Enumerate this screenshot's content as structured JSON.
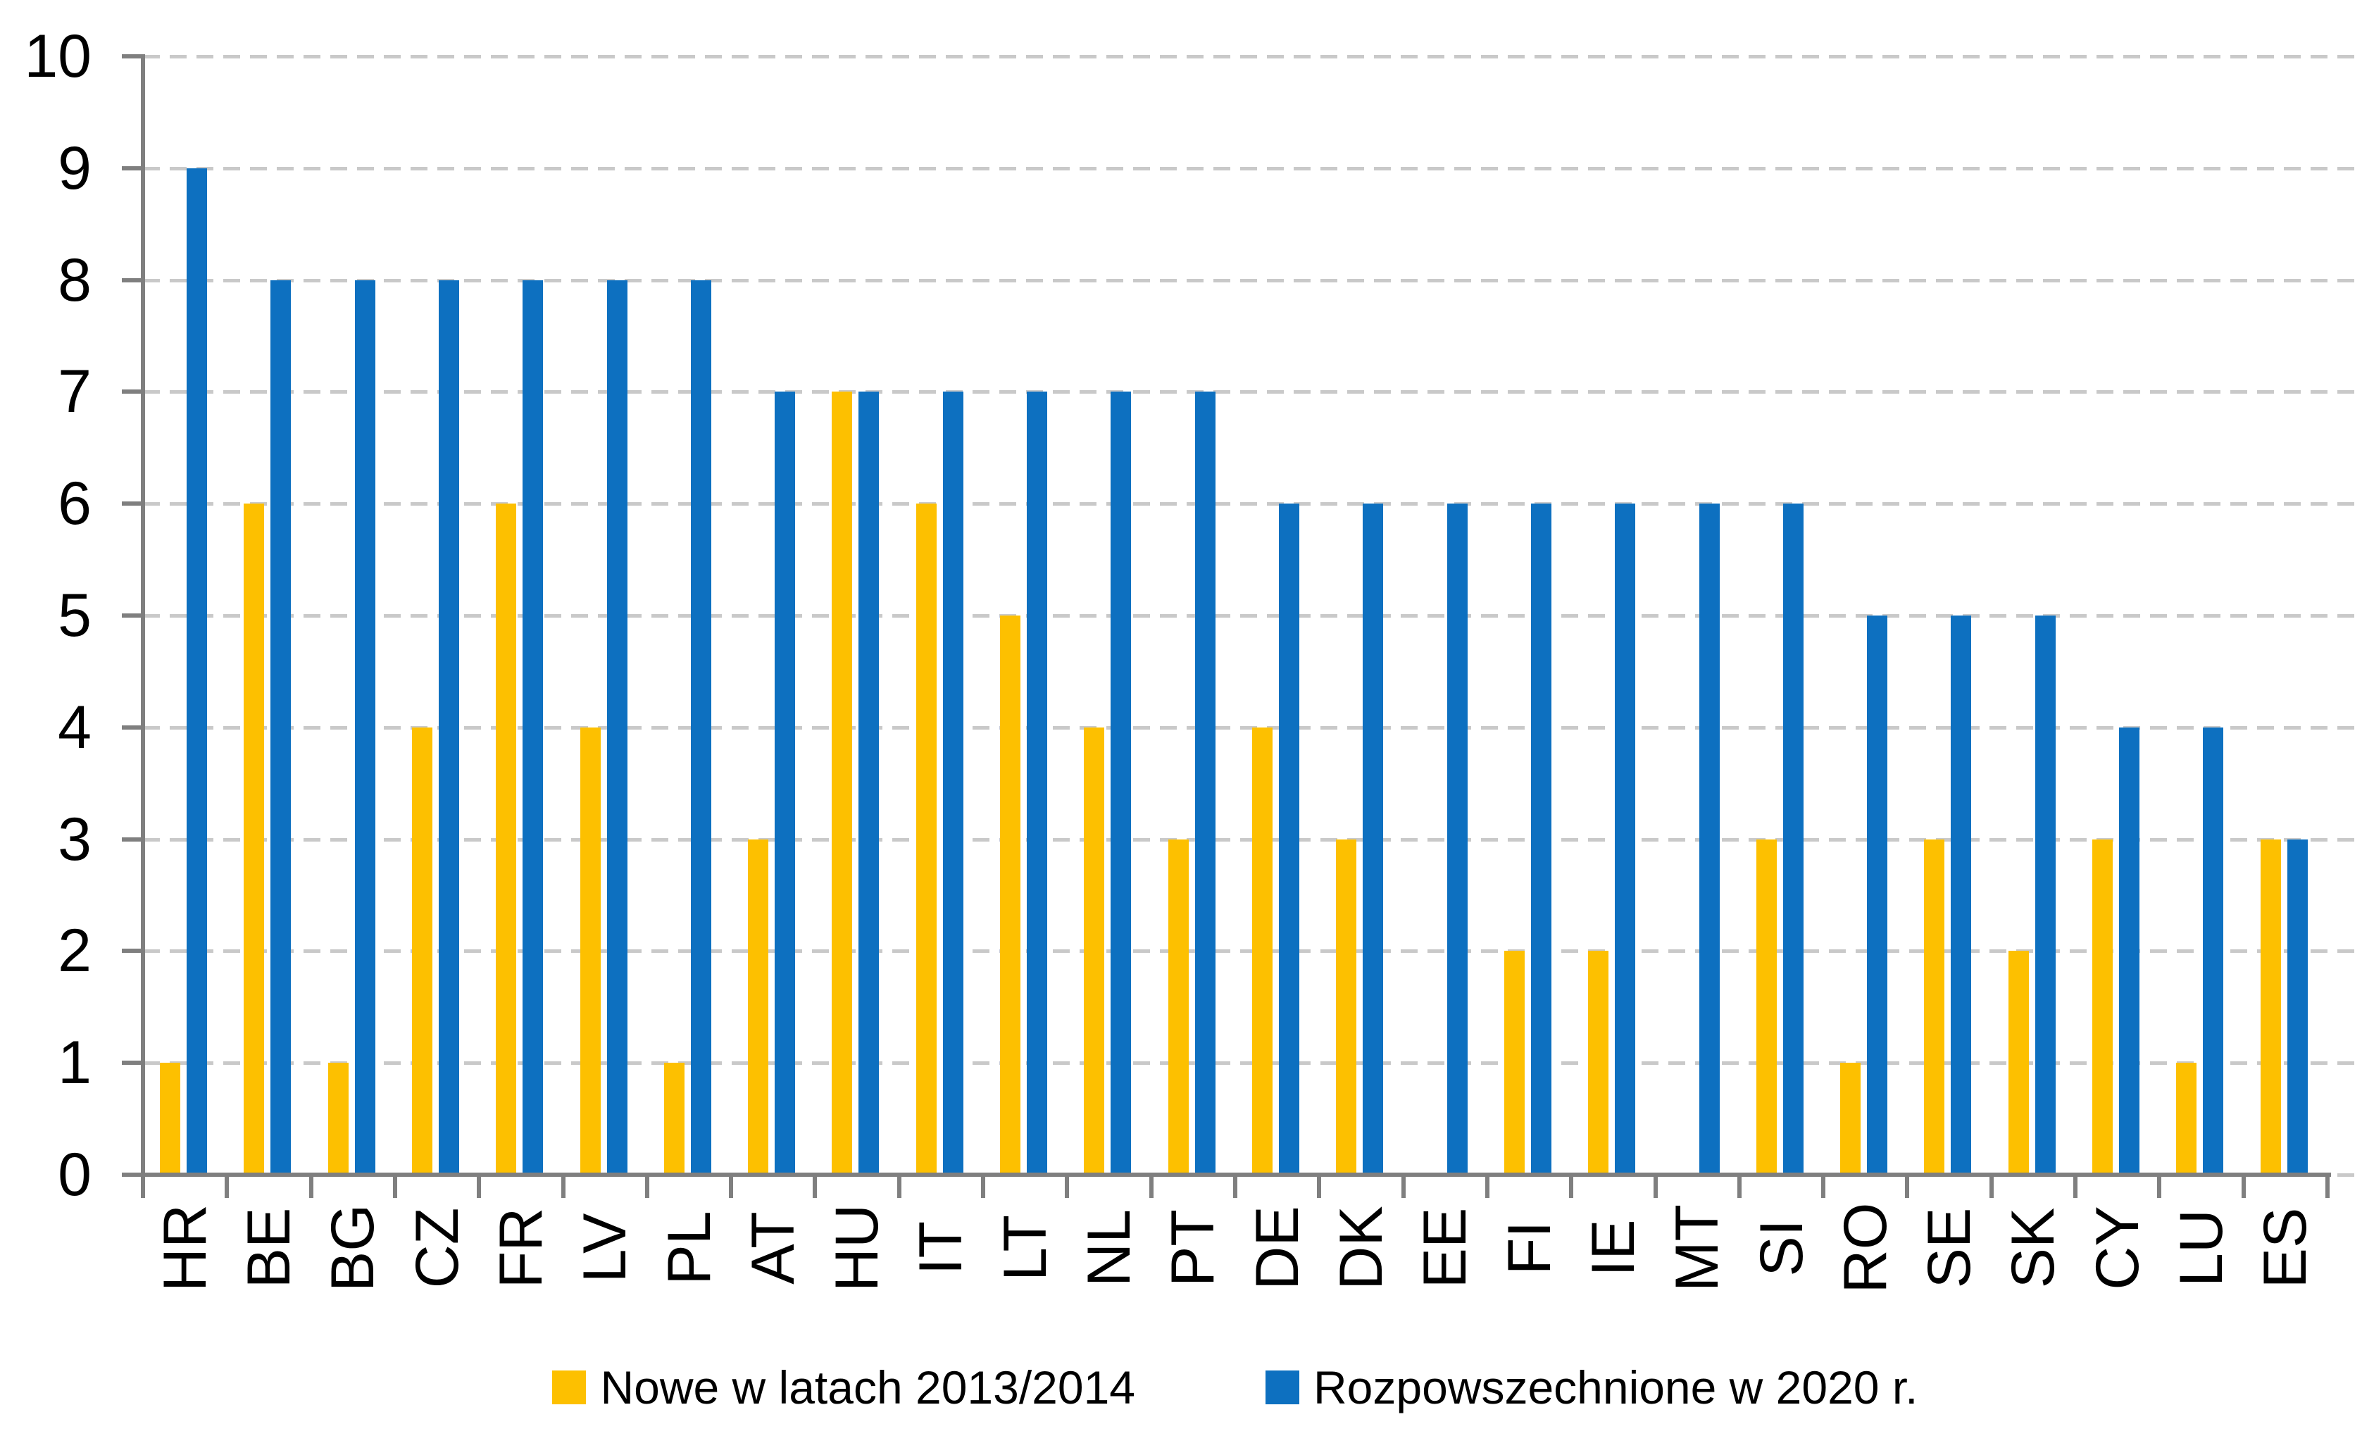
{
  "chart_data": {
    "type": "bar",
    "title": "",
    "xlabel": "",
    "ylabel": "",
    "categories": [
      "HR",
      "BE",
      "BG",
      "CZ",
      "FR",
      "LV",
      "PL",
      "AT",
      "HU",
      "IT",
      "LT",
      "NL",
      "PT",
      "DE",
      "DK",
      "EE",
      "FI",
      "IE",
      "MT",
      "SI",
      "RO",
      "SE",
      "SK",
      "CY",
      "LU",
      "ES"
    ],
    "series": [
      {
        "name": "Nowe w latach 2013/2014",
        "color": "#fdc000",
        "values": [
          1,
          6,
          1,
          4,
          6,
          4,
          1,
          3,
          7,
          6,
          5,
          4,
          3,
          4,
          3,
          0,
          2,
          2,
          0,
          3,
          1,
          3,
          2,
          3,
          1,
          3
        ]
      },
      {
        "name": "Rozpowszechnione w 2020 r.",
        "color": "#0d70c0",
        "values": [
          9,
          8,
          8,
          8,
          8,
          8,
          8,
          7,
          7,
          7,
          7,
          7,
          7,
          6,
          6,
          6,
          6,
          6,
          6,
          6,
          5,
          5,
          5,
          4,
          4,
          3
        ]
      }
    ],
    "ylim": [
      0,
      10
    ],
    "ytick_labels": [
      "0",
      "1",
      "2",
      "3",
      "4",
      "5",
      "6",
      "7",
      "8",
      "9",
      "10"
    ],
    "grid": "horizontal-dashed",
    "legend_position": "bottom-center"
  },
  "legend": {
    "items": [
      {
        "label": "Nowe w latach 2013/2014",
        "swatch": "yellow-square"
      },
      {
        "label": "Rozpowszechnione w 2020 r.",
        "swatch": "blue-square"
      }
    ]
  },
  "colors": {
    "series_new": "#fdc000",
    "series_spread": "#0d70c0",
    "gridline": "#c9c9c9",
    "axis": "#7f7f7f",
    "text": "#000000",
    "background": "#ffffff"
  }
}
